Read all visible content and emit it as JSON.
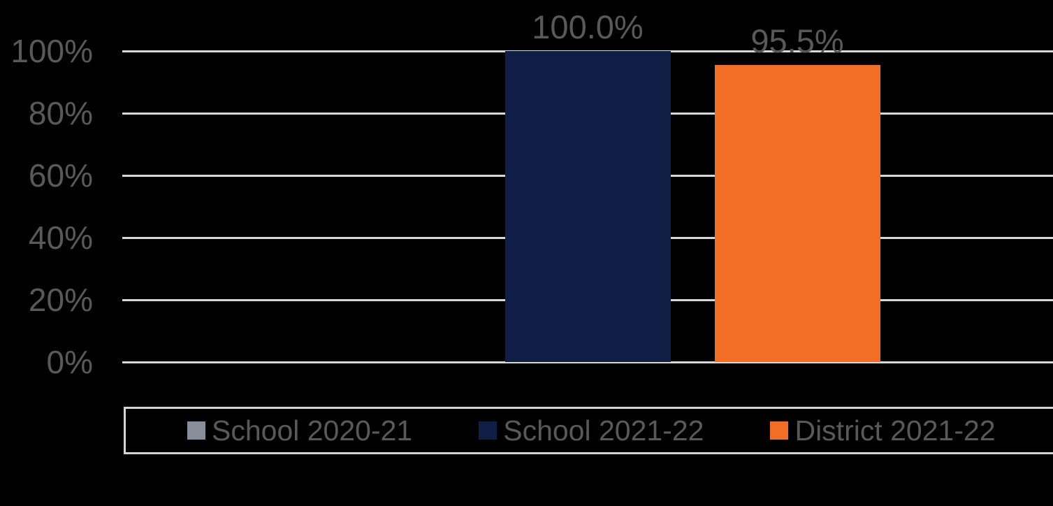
{
  "colors": {
    "background": "#000000",
    "text": "#595959",
    "gridline": "#D8D8D8",
    "legend_border": "#D4D4D4"
  },
  "chart_data": {
    "type": "bar",
    "title": "",
    "xlabel": "",
    "ylabel": "",
    "categories": [
      ""
    ],
    "series": [
      {
        "name": "School 2020-21",
        "color": "#878E99",
        "values": [
          null
        ],
        "data_labels": [
          ""
        ]
      },
      {
        "name": "School 2021-22",
        "color": "#101E46",
        "values": [
          100.0
        ],
        "data_labels": [
          "100.0%"
        ]
      },
      {
        "name": "District 2021-22",
        "color": "#F16E24",
        "values": [
          95.5
        ],
        "data_labels": [
          "95.5%"
        ]
      }
    ],
    "y_ticks": [
      {
        "value": 0,
        "label": "0%"
      },
      {
        "value": 20,
        "label": "20%"
      },
      {
        "value": 40,
        "label": "40%"
      },
      {
        "value": 60,
        "label": "60%"
      },
      {
        "value": 80,
        "label": "80%"
      },
      {
        "value": 100,
        "label": "100%"
      }
    ],
    "ylim": [
      0,
      100
    ],
    "grid": true,
    "legend_position": "bottom"
  }
}
